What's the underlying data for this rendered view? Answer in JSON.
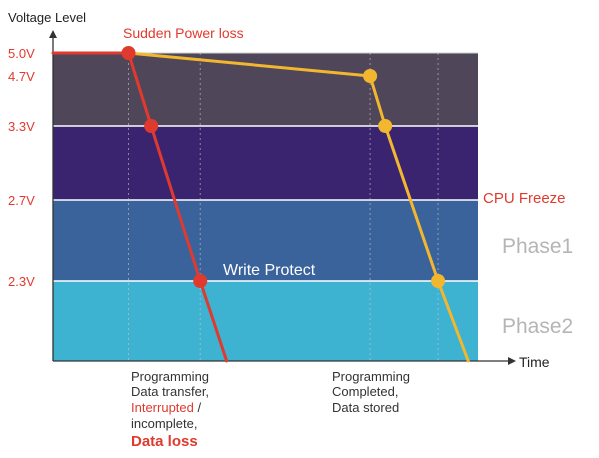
{
  "chart_data": {
    "type": "line",
    "ylabel": "Voltage Level",
    "xlabel": "Time",
    "y_ticks": [
      "5.0V",
      "4.7V",
      "3.3V",
      "2.7V",
      "2.3V"
    ],
    "tick_color": "#e03a2e",
    "bands": [
      {
        "from": 3.3,
        "to": 5.0,
        "color": "#4f4659"
      },
      {
        "from": 2.7,
        "to": 3.3,
        "color": "#3a2470"
      },
      {
        "from": 2.3,
        "to": 2.7,
        "color": "#3a639c"
      },
      {
        "from": 1.75,
        "to": 2.3,
        "color": "#3db2d1"
      }
    ],
    "band_labels": {
      "cpu_freeze": "CPU Freeze",
      "write_protect": "Write Protect",
      "phase1": "Phase1",
      "phase2": "Phase2"
    },
    "series": [
      {
        "color": "#e03a2e",
        "points": [
          [
            0,
            5.0
          ],
          [
            1.0,
            5.0
          ],
          [
            1.3,
            3.3
          ],
          [
            1.95,
            2.3
          ],
          [
            2.3,
            1.75
          ]
        ],
        "markers": [
          1,
          2,
          3
        ]
      },
      {
        "color": "#f2b72e",
        "points": [
          [
            1.0,
            5.0
          ],
          [
            4.2,
            4.7
          ],
          [
            4.4,
            3.3
          ],
          [
            5.1,
            2.3
          ],
          [
            5.5,
            1.75
          ]
        ],
        "markers": [
          1,
          2,
          3
        ]
      }
    ],
    "annotations": {
      "sudden_power_loss": "Sudden Power loss",
      "left_note": {
        "line1": "Programming",
        "line2": "Data transfer,",
        "line3": "Interrupted",
        "line3_suffix": " /",
        "line4": "incomplete,",
        "line5": "Data loss"
      },
      "right_note": {
        "line1": "Programming",
        "line2": "Completed,",
        "line3": "Data stored"
      }
    }
  }
}
